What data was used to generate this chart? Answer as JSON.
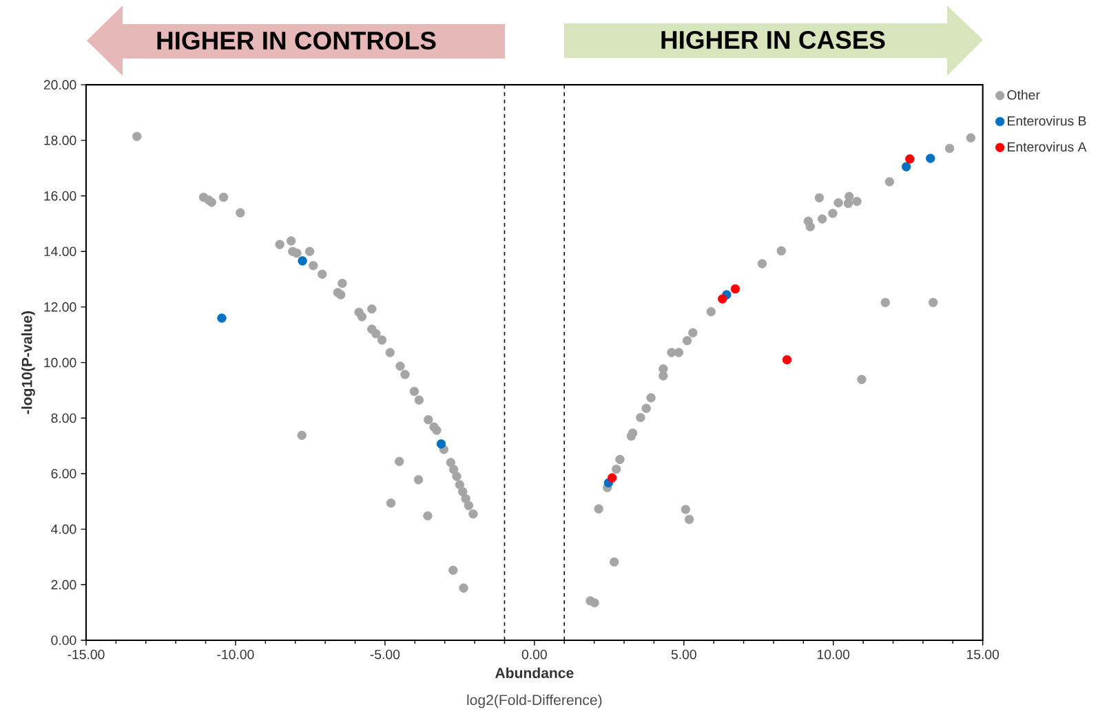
{
  "chart_data": {
    "type": "scatter",
    "xlabel": "Abundance",
    "ylabel": "-log10(P-value)",
    "annotations": [
      "HIGHER IN CONTROLS",
      "HIGHER IN CASES",
      "log2(Fold-Difference)"
    ],
    "xlim": [
      -15,
      15
    ],
    "ylim": [
      0,
      20
    ],
    "xticks": [
      {
        "value": -15,
        "label": "-15.00"
      },
      {
        "value": -10,
        "label": "-10.00"
      },
      {
        "value": -5,
        "label": "-5.00"
      },
      {
        "value": 0,
        "label": "0.00"
      },
      {
        "value": 5,
        "label": "5.00"
      },
      {
        "value": 10,
        "label": "10.00"
      },
      {
        "value": 15,
        "label": "15.00"
      }
    ],
    "yticks": [
      {
        "value": 0,
        "label": "0.00"
      },
      {
        "value": 2,
        "label": "2.00"
      },
      {
        "value": 4,
        "label": "4.00"
      },
      {
        "value": 6,
        "label": "6.00"
      },
      {
        "value": 8,
        "label": "8.00"
      },
      {
        "value": 10,
        "label": "10.00"
      },
      {
        "value": 12,
        "label": "12.00"
      },
      {
        "value": 14,
        "label": "14.00"
      },
      {
        "value": 16,
        "label": "16.00"
      },
      {
        "value": 18,
        "label": "18.00"
      },
      {
        "value": 20,
        "label": "20.00"
      }
    ],
    "ref_lines": [
      {
        "axis": "x",
        "value": -1,
        "line_style": "dashed",
        "color": "#000000"
      },
      {
        "axis": "x",
        "value": 1,
        "line_style": "dashed",
        "color": "#000000"
      }
    ],
    "marker": "circle",
    "legend": "right",
    "grid": false,
    "series": [
      {
        "name": "Other",
        "color": "#a5a5a5",
        "x": [
          -13.3,
          -11.07,
          -10.9,
          -10.8,
          -10.4,
          -9.84,
          -8.52,
          -8.14,
          -8.09,
          -7.95,
          -7.52,
          -7.4,
          -7.1,
          -6.43,
          -6.58,
          -6.48,
          -5.44,
          -5.87,
          -5.77,
          -5.44,
          -5.3,
          -5.1,
          -4.83,
          -4.49,
          -4.33,
          -4.02,
          -3.86,
          -3.55,
          -3.36,
          -3.27,
          -3.03,
          -2.8,
          -2.7,
          -2.6,
          -2.5,
          -2.4,
          -2.3,
          -2.2,
          -2.05,
          -4.52,
          -3.88,
          -4.8,
          -3.57,
          -7.78,
          -2.72,
          -2.37,
          14.6,
          13.89,
          11.88,
          10.53,
          10.5,
          10.79,
          10.17,
          9.98,
          9.63,
          9.53,
          9.16,
          9.23,
          8.26,
          7.62,
          5.91,
          5.3,
          5.11,
          4.83,
          4.59,
          4.31,
          4.31,
          3.9,
          3.74,
          3.55,
          3.29,
          3.24,
          2.86,
          2.74,
          2.44,
          2.15,
          5.06,
          5.18,
          2.67,
          1.87,
          2.01,
          11.74,
          13.34,
          10.95
        ],
        "values": [
          18.14,
          15.95,
          15.85,
          15.77,
          15.95,
          15.39,
          14.25,
          14.38,
          14.0,
          13.94,
          14.0,
          13.49,
          13.18,
          12.85,
          12.52,
          12.44,
          11.93,
          11.81,
          11.65,
          11.2,
          11.04,
          10.81,
          10.36,
          9.87,
          9.57,
          8.96,
          8.65,
          7.94,
          7.68,
          7.56,
          6.87,
          6.4,
          6.15,
          5.9,
          5.6,
          5.35,
          5.1,
          4.85,
          4.55,
          6.44,
          5.78,
          4.94,
          4.48,
          7.38,
          2.52,
          1.88,
          18.09,
          17.71,
          16.51,
          15.98,
          15.73,
          15.8,
          15.75,
          15.37,
          15.17,
          15.93,
          15.09,
          14.89,
          14.02,
          13.56,
          11.83,
          11.07,
          10.79,
          10.36,
          10.36,
          9.77,
          9.52,
          8.73,
          8.35,
          8.02,
          7.46,
          7.35,
          6.51,
          6.16,
          5.5,
          4.73,
          4.71,
          4.35,
          2.82,
          1.42,
          1.35,
          12.16,
          12.16,
          9.39
        ]
      },
      {
        "name": "Enterovirus B",
        "color": "#0070c0",
        "x": [
          -10.46,
          -7.76,
          -3.12,
          12.44,
          13.25,
          6.43,
          2.48
        ],
        "values": [
          11.6,
          13.66,
          7.07,
          17.05,
          17.35,
          12.44,
          5.67
        ]
      },
      {
        "name": "Enterovirus A",
        "color": "#ff0000",
        "x": [
          12.56,
          6.72,
          6.29,
          2.6,
          8.45
        ],
        "values": [
          17.33,
          12.65,
          12.29,
          5.85,
          10.1
        ]
      }
    ]
  }
}
